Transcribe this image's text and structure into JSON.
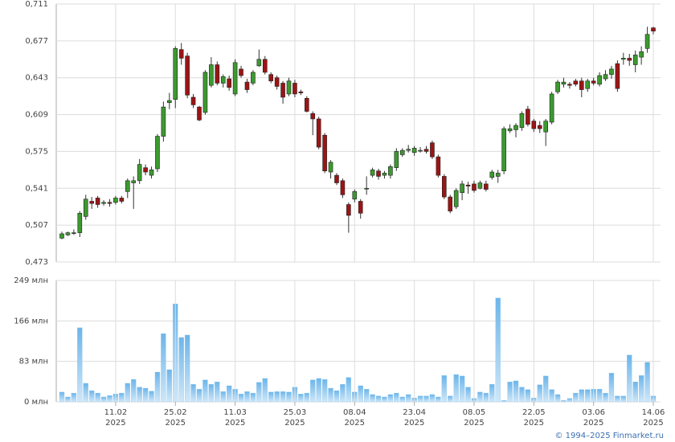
{
  "chart_data": [
    {
      "type": "candlestick",
      "up_color": "#3c9a2f",
      "down_color": "#9c1414",
      "ylim": [
        0.473,
        0.711
      ],
      "yticks": [
        {
          "value": 0.473,
          "label": "0,473"
        },
        {
          "value": 0.507,
          "label": "0,507"
        },
        {
          "value": 0.541,
          "label": "0,541"
        },
        {
          "value": 0.575,
          "label": "0,575"
        },
        {
          "value": 0.609,
          "label": "0,609"
        },
        {
          "value": 0.643,
          "label": "0,643"
        },
        {
          "value": 0.677,
          "label": "0,677"
        },
        {
          "value": 0.711,
          "label": "0,711"
        }
      ],
      "grid": true,
      "open": [
        0.495,
        0.498,
        0.5,
        0.5,
        0.515,
        0.529,
        0.532,
        0.527,
        0.528,
        0.528,
        0.532,
        0.538,
        0.546,
        0.548,
        0.56,
        0.553,
        0.559,
        0.589,
        0.62,
        0.623,
        0.669,
        0.663,
        0.625,
        0.616,
        0.611,
        0.636,
        0.655,
        0.638,
        0.642,
        0.628,
        0.651,
        0.639,
        0.638,
        0.654,
        0.66,
        0.646,
        0.643,
        0.638,
        0.628,
        0.638,
        0.63,
        0.624,
        0.61,
        0.605,
        0.59,
        0.556,
        0.553,
        0.548,
        0.526,
        0.531,
        0.529,
        0.541,
        0.553,
        0.557,
        0.553,
        0.553,
        0.56,
        0.572,
        0.576,
        0.574,
        0.576,
        0.577,
        0.583,
        0.57,
        0.552,
        0.533,
        0.524,
        0.537,
        0.544,
        0.545,
        0.541,
        0.545,
        0.551,
        0.552,
        0.557,
        0.594,
        0.595,
        0.597,
        0.614,
        0.603,
        0.599,
        0.593,
        0.602,
        0.63,
        0.637,
        0.637,
        0.64,
        0.64,
        0.633,
        0.64,
        0.637,
        0.642,
        0.646,
        0.656,
        0.66,
        0.661,
        0.655,
        0.662,
        0.67,
        0.689
      ],
      "high": [
        0.501,
        0.501,
        0.503,
        0.52,
        0.535,
        0.533,
        0.534,
        0.53,
        0.531,
        0.534,
        0.534,
        0.55,
        0.552,
        0.568,
        0.563,
        0.561,
        0.591,
        0.621,
        0.629,
        0.672,
        0.675,
        0.666,
        0.628,
        0.617,
        0.65,
        0.662,
        0.658,
        0.646,
        0.645,
        0.66,
        0.654,
        0.642,
        0.65,
        0.669,
        0.663,
        0.648,
        0.645,
        0.64,
        0.643,
        0.641,
        0.632,
        0.626,
        0.612,
        0.607,
        0.592,
        0.567,
        0.555,
        0.55,
        0.528,
        0.54,
        0.531,
        0.552,
        0.56,
        0.559,
        0.557,
        0.563,
        0.578,
        0.578,
        0.581,
        0.58,
        0.579,
        0.58,
        0.585,
        0.572,
        0.554,
        0.535,
        0.541,
        0.548,
        0.547,
        0.548,
        0.548,
        0.548,
        0.558,
        0.558,
        0.598,
        0.6,
        0.601,
        0.612,
        0.617,
        0.605,
        0.603,
        0.605,
        0.63,
        0.641,
        0.643,
        0.639,
        0.642,
        0.643,
        0.642,
        0.643,
        0.648,
        0.65,
        0.654,
        0.659,
        0.666,
        0.665,
        0.668,
        0.672,
        0.69,
        0.69
      ],
      "low": [
        0.494,
        0.497,
        0.498,
        0.496,
        0.512,
        0.522,
        0.523,
        0.525,
        0.524,
        0.526,
        0.527,
        0.532,
        0.522,
        0.545,
        0.553,
        0.55,
        0.556,
        0.584,
        0.614,
        0.615,
        0.655,
        0.624,
        0.615,
        0.603,
        0.609,
        0.634,
        0.636,
        0.634,
        0.631,
        0.626,
        0.643,
        0.629,
        0.636,
        0.653,
        0.646,
        0.638,
        0.632,
        0.619,
        0.626,
        0.625,
        0.627,
        0.611,
        0.59,
        0.577,
        0.555,
        0.55,
        0.544,
        0.532,
        0.5,
        0.528,
        0.513,
        0.535,
        0.551,
        0.549,
        0.55,
        0.55,
        0.557,
        0.57,
        0.574,
        0.571,
        0.574,
        0.573,
        0.568,
        0.551,
        0.531,
        0.518,
        0.522,
        0.53,
        0.536,
        0.537,
        0.54,
        0.538,
        0.549,
        0.546,
        0.554,
        0.592,
        0.588,
        0.594,
        0.598,
        0.593,
        0.592,
        0.58,
        0.6,
        0.628,
        0.634,
        0.633,
        0.635,
        0.625,
        0.63,
        0.636,
        0.635,
        0.64,
        0.642,
        0.63,
        0.655,
        0.654,
        0.648,
        0.655,
        0.666,
        0.683
      ],
      "close": [
        0.499,
        0.5,
        0.5,
        0.518,
        0.531,
        0.527,
        0.526,
        0.528,
        0.527,
        0.532,
        0.529,
        0.548,
        0.548,
        0.563,
        0.556,
        0.558,
        0.589,
        0.616,
        0.622,
        0.67,
        0.661,
        0.627,
        0.618,
        0.604,
        0.648,
        0.655,
        0.638,
        0.644,
        0.634,
        0.657,
        0.645,
        0.632,
        0.648,
        0.66,
        0.648,
        0.64,
        0.635,
        0.625,
        0.64,
        0.628,
        0.629,
        0.612,
        0.605,
        0.579,
        0.557,
        0.565,
        0.546,
        0.535,
        0.516,
        0.538,
        0.518,
        0.541,
        0.558,
        0.552,
        0.555,
        0.561,
        0.575,
        0.576,
        0.577,
        0.578,
        0.576,
        0.575,
        0.57,
        0.553,
        0.533,
        0.52,
        0.539,
        0.545,
        0.543,
        0.539,
        0.546,
        0.54,
        0.556,
        0.555,
        0.596,
        0.596,
        0.599,
        0.61,
        0.6,
        0.596,
        0.596,
        0.603,
        0.628,
        0.639,
        0.639,
        0.636,
        0.637,
        0.632,
        0.64,
        0.638,
        0.645,
        0.646,
        0.651,
        0.633,
        0.661,
        0.659,
        0.664,
        0.667,
        0.683,
        0.686
      ]
    },
    {
      "type": "bar",
      "color": "#8cc7ef",
      "categories": [
        null,
        null,
        null,
        null,
        null,
        null,
        null,
        null,
        null,
        "11.02",
        null,
        null,
        null,
        null,
        null,
        null,
        null,
        null,
        null,
        "25.02",
        null,
        null,
        null,
        null,
        null,
        null,
        null,
        null,
        null,
        "11.03",
        null,
        null,
        null,
        null,
        null,
        null,
        null,
        null,
        null,
        "25.03",
        null,
        null,
        null,
        null,
        null,
        null,
        null,
        null,
        null,
        "08.04",
        null,
        null,
        null,
        null,
        null,
        null,
        null,
        null,
        null,
        "23.04",
        null,
        null,
        null,
        null,
        null,
        null,
        null,
        null,
        null,
        "08.05",
        null,
        null,
        null,
        null,
        null,
        null,
        null,
        null,
        null,
        "22.05",
        null,
        null,
        null,
        null,
        null,
        null,
        null,
        null,
        null,
        "03.06",
        null,
        null,
        null,
        null,
        null,
        null,
        null,
        null,
        null,
        "14.06"
      ],
      "category_years": [
        null,
        null,
        null,
        null,
        null,
        null,
        null,
        null,
        null,
        "2025",
        null,
        null,
        null,
        null,
        null,
        null,
        null,
        null,
        null,
        "2025",
        null,
        null,
        null,
        null,
        null,
        null,
        null,
        null,
        null,
        "2025",
        null,
        null,
        null,
        null,
        null,
        null,
        null,
        null,
        null,
        "2025",
        null,
        null,
        null,
        null,
        null,
        null,
        null,
        null,
        null,
        "2025",
        null,
        null,
        null,
        null,
        null,
        null,
        null,
        null,
        null,
        "2025",
        null,
        null,
        null,
        null,
        null,
        null,
        null,
        null,
        null,
        "2025",
        null,
        null,
        null,
        null,
        null,
        null,
        null,
        null,
        null,
        "2025",
        null,
        null,
        null,
        null,
        null,
        null,
        null,
        null,
        null,
        "2025",
        null,
        null,
        null,
        null,
        null,
        null,
        null,
        null,
        null,
        "2025"
      ],
      "values": [
        20,
        10,
        18,
        152,
        38,
        23,
        18,
        10,
        13,
        16,
        18,
        38,
        46,
        30,
        28,
        22,
        61,
        140,
        66,
        201,
        132,
        137,
        36,
        26,
        45,
        36,
        41,
        21,
        33,
        26,
        16,
        21,
        18,
        40,
        48,
        20,
        21,
        21,
        20,
        30,
        16,
        18,
        45,
        48,
        46,
        28,
        23,
        36,
        50,
        20,
        33,
        26,
        15,
        12,
        10,
        15,
        18,
        10,
        15,
        8,
        12,
        12,
        15,
        10,
        54,
        12,
        56,
        53,
        30,
        7,
        20,
        18,
        36,
        213,
        3,
        41,
        43,
        30,
        25,
        8,
        35,
        53,
        25,
        15,
        3,
        7,
        18,
        25,
        25,
        26,
        26,
        18,
        59,
        12,
        12,
        96,
        41,
        54,
        81,
        12
      ],
      "ylim": [
        0,
        249
      ],
      "yticks": [
        {
          "value": 0,
          "label": "0 млн"
        },
        {
          "value": 83,
          "label": "83 млн"
        },
        {
          "value": 166,
          "label": "166 млн"
        },
        {
          "value": 249,
          "label": "249 млн"
        }
      ],
      "grid": true
    }
  ],
  "footer": "© 1994–2025 Finmarket.ru"
}
